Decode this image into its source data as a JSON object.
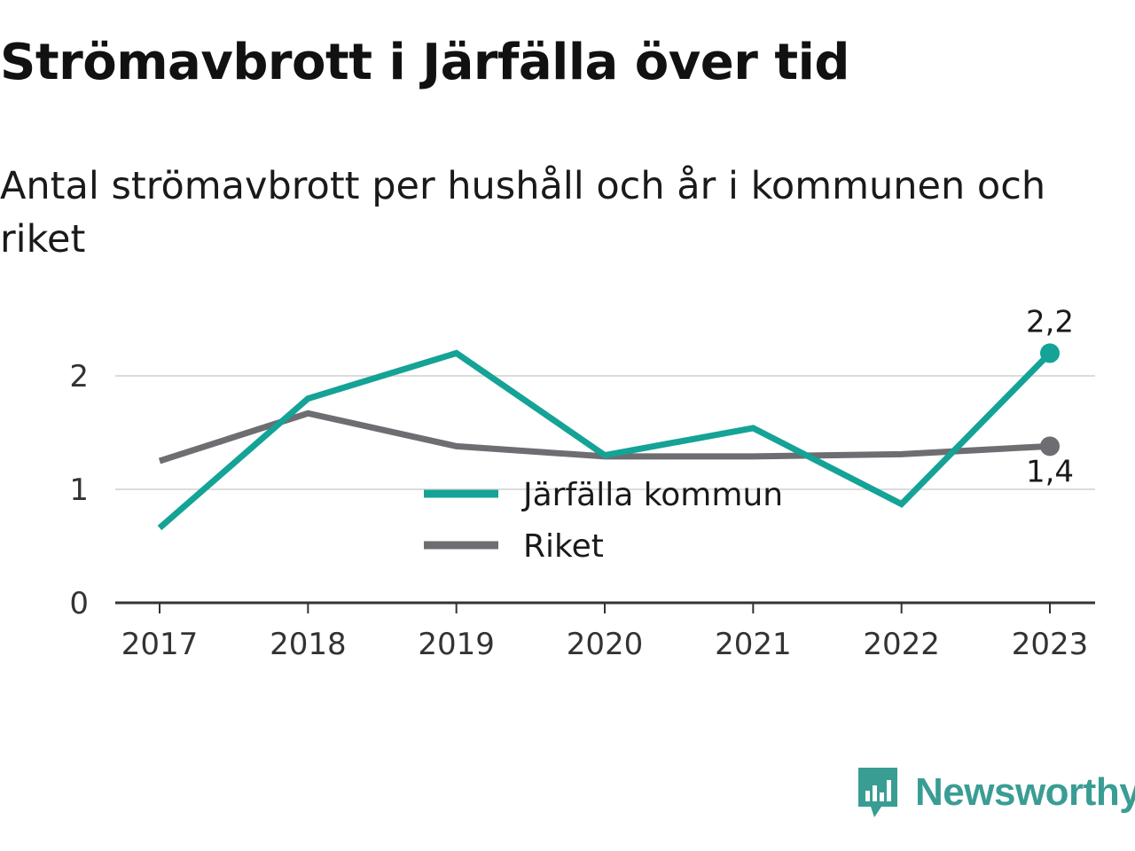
{
  "header": {
    "title": "Strömavbrott i Järfälla över tid",
    "subtitle": "Antal strömavbrott per hushåll och år i kommunen och riket"
  },
  "brand": {
    "name": "Newsworthy",
    "icon": "newsworthy-logo-icon",
    "color": "#3a9d94"
  },
  "chart_data": {
    "type": "line",
    "title": "Strömavbrott i Järfälla över tid",
    "subtitle": "Antal strömavbrott per hushåll och år i kommunen och riket",
    "xlabel": "",
    "ylabel": "",
    "x": [
      "2017",
      "2018",
      "2019",
      "2020",
      "2021",
      "2022",
      "2023"
    ],
    "ylim": [
      0,
      2.4
    ],
    "yticks": [
      0,
      1,
      2
    ],
    "grid": true,
    "legend_position": "center",
    "series": [
      {
        "name": "Järfälla kommun",
        "color": "#14a396",
        "values": [
          0.66,
          1.8,
          2.2,
          1.3,
          1.54,
          0.87,
          2.2
        ],
        "end_label": "2,2"
      },
      {
        "name": "Riket",
        "color": "#6e6d72",
        "values": [
          1.25,
          1.67,
          1.38,
          1.29,
          1.29,
          1.31,
          1.38
        ],
        "end_label": "1,4"
      }
    ]
  }
}
